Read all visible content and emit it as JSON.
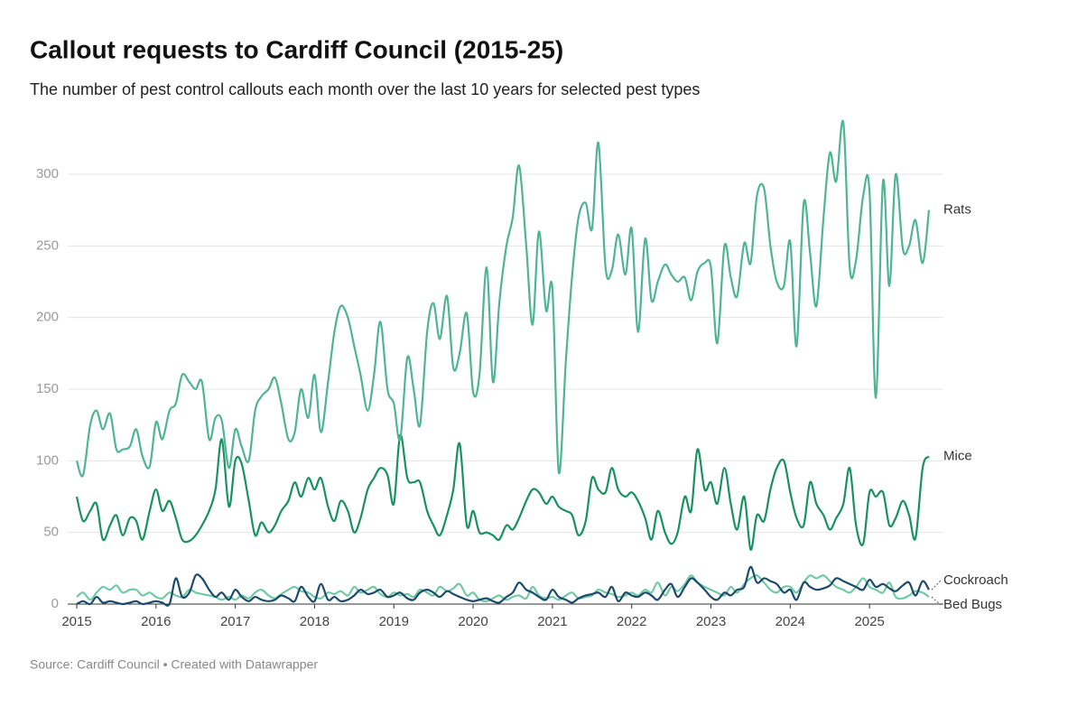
{
  "chart_data": {
    "type": "line",
    "title": "Callout requests to Cardiff Council (2015-25)",
    "subtitle": "The number of pest control callouts each month over the last 10 years for selected pest types",
    "source": "Source: Cardiff Council • Created with Datawrapper",
    "xlim": [
      2015,
      2025.75
    ],
    "xticks": [
      2015,
      2016,
      2017,
      2018,
      2019,
      2020,
      2021,
      2022,
      2023,
      2024,
      2025
    ],
    "ylim": [
      0,
      300
    ],
    "yticks": [
      0,
      50,
      100,
      150,
      200,
      250,
      300
    ],
    "grid": true,
    "x": [
      2015,
      2015.08,
      2015.17,
      2015.25,
      2015.33,
      2015.42,
      2015.5,
      2015.58,
      2015.67,
      2015.75,
      2015.83,
      2015.92,
      2016,
      2016.08,
      2016.17,
      2016.25,
      2016.33,
      2016.42,
      2016.5,
      2016.58,
      2016.67,
      2016.75,
      2016.83,
      2016.92,
      2017,
      2017.08,
      2017.17,
      2017.25,
      2017.33,
      2017.42,
      2017.5,
      2017.58,
      2017.67,
      2017.75,
      2017.83,
      2017.92,
      2018,
      2018.08,
      2018.17,
      2018.25,
      2018.33,
      2018.42,
      2018.5,
      2018.58,
      2018.67,
      2018.75,
      2018.83,
      2018.92,
      2019,
      2019.08,
      2019.17,
      2019.25,
      2019.33,
      2019.42,
      2019.5,
      2019.58,
      2019.67,
      2019.75,
      2019.83,
      2019.92,
      2020,
      2020.08,
      2020.17,
      2020.25,
      2020.33,
      2020.42,
      2020.5,
      2020.58,
      2020.67,
      2020.75,
      2020.83,
      2020.92,
      2021,
      2021.08,
      2021.17,
      2021.25,
      2021.33,
      2021.42,
      2021.5,
      2021.58,
      2021.67,
      2021.75,
      2021.83,
      2021.92,
      2022,
      2022.08,
      2022.17,
      2022.25,
      2022.33,
      2022.42,
      2022.5,
      2022.58,
      2022.67,
      2022.75,
      2022.83,
      2022.92,
      2023,
      2023.08,
      2023.17,
      2023.25,
      2023.33,
      2023.42,
      2023.5,
      2023.58,
      2023.67,
      2023.75,
      2023.83,
      2023.92,
      2024,
      2024.08,
      2024.17,
      2024.25,
      2024.33,
      2024.42,
      2024.5,
      2024.58,
      2024.67,
      2024.75,
      2024.83,
      2024.92,
      2025,
      2025.08,
      2025.17,
      2025.25,
      2025.33,
      2025.42,
      2025.5,
      2025.58,
      2025.67,
      2025.75
    ],
    "series": [
      {
        "name": "Rats",
        "color": "#4db593",
        "values": [
          100,
          90,
          125,
          135,
          122,
          133,
          108,
          108,
          110,
          122,
          103,
          96,
          127,
          115,
          135,
          140,
          160,
          155,
          150,
          155,
          115,
          130,
          128,
          95,
          122,
          110,
          100,
          135,
          145,
          150,
          158,
          140,
          115,
          120,
          150,
          130,
          160,
          120,
          155,
          190,
          208,
          200,
          180,
          160,
          135,
          160,
          197,
          150,
          140,
          115,
          172,
          150,
          125,
          190,
          210,
          185,
          215,
          165,
          175,
          203,
          148,
          160,
          235,
          155,
          210,
          250,
          270,
          306,
          250,
          195,
          260,
          205,
          220,
          92,
          170,
          230,
          270,
          280,
          262,
          322,
          235,
          233,
          258,
          230,
          262,
          190,
          255,
          212,
          225,
          237,
          230,
          225,
          228,
          212,
          232,
          238,
          235,
          182,
          250,
          228,
          215,
          252,
          238,
          285,
          290,
          250,
          225,
          222,
          253,
          180,
          280,
          245,
          208,
          270,
          315,
          295,
          336,
          235,
          240,
          285,
          288,
          144,
          295,
          222,
          300,
          248,
          250,
          268,
          238,
          275
        ]
      },
      {
        "name": "Mice",
        "color": "#17925f",
        "values": [
          75,
          58,
          65,
          70,
          45,
          55,
          62,
          48,
          60,
          58,
          45,
          65,
          80,
          65,
          72,
          60,
          45,
          44,
          48,
          55,
          65,
          80,
          115,
          68,
          100,
          98,
          72,
          48,
          57,
          50,
          55,
          65,
          72,
          85,
          75,
          88,
          80,
          88,
          68,
          58,
          72,
          65,
          50,
          60,
          80,
          88,
          95,
          90,
          70,
          118,
          88,
          85,
          85,
          65,
          55,
          48,
          62,
          80,
          112,
          55,
          65,
          50,
          50,
          48,
          45,
          55,
          52,
          60,
          72,
          80,
          78,
          70,
          75,
          68,
          65,
          62,
          48,
          58,
          88,
          80,
          78,
          95,
          80,
          75,
          78,
          72,
          60,
          45,
          65,
          50,
          42,
          50,
          75,
          65,
          108,
          80,
          85,
          70,
          95,
          70,
          52,
          75,
          38,
          62,
          58,
          80,
          95,
          100,
          78,
          60,
          55,
          85,
          70,
          62,
          52,
          60,
          70,
          95,
          55,
          42,
          78,
          75,
          78,
          55,
          60,
          72,
          62,
          46,
          95,
          103
        ]
      },
      {
        "name": "Cockroach",
        "color": "#1c4a6b",
        "values": [
          0,
          2,
          0,
          5,
          1,
          2,
          1,
          0,
          1,
          2,
          0,
          1,
          2,
          1,
          0,
          18,
          5,
          8,
          20,
          18,
          10,
          5,
          8,
          3,
          10,
          5,
          2,
          5,
          3,
          2,
          3,
          6,
          4,
          2,
          12,
          5,
          2,
          14,
          3,
          5,
          2,
          3,
          6,
          10,
          7,
          8,
          10,
          5,
          6,
          8,
          4,
          3,
          8,
          10,
          8,
          5,
          9,
          7,
          5,
          3,
          2,
          3,
          4,
          2,
          1,
          5,
          8,
          15,
          10,
          8,
          5,
          3,
          10,
          5,
          3,
          1,
          4,
          6,
          7,
          8,
          5,
          12,
          2,
          8,
          6,
          5,
          8,
          6,
          3,
          10,
          14,
          5,
          12,
          18,
          15,
          10,
          5,
          3,
          8,
          6,
          10,
          12,
          26,
          15,
          18,
          16,
          14,
          8,
          10,
          3,
          15,
          12,
          10,
          11,
          13,
          18,
          16,
          14,
          12,
          10,
          17,
          12,
          14,
          11,
          9,
          13,
          15,
          6,
          16,
          10
        ]
      },
      {
        "name": "Bed Bugs",
        "color": "#6fcaa6",
        "values": [
          5,
          8,
          3,
          8,
          12,
          10,
          13,
          8,
          10,
          10,
          6,
          8,
          5,
          4,
          8,
          6,
          5,
          10,
          8,
          7,
          6,
          5,
          3,
          5,
          3,
          6,
          4,
          8,
          10,
          6,
          4,
          7,
          10,
          12,
          9,
          8,
          5,
          4,
          8,
          7,
          9,
          6,
          12,
          8,
          10,
          12,
          7,
          5,
          8,
          6,
          7,
          5,
          10,
          8,
          6,
          12,
          9,
          11,
          14,
          6,
          8,
          3,
          2,
          4,
          6,
          3,
          5,
          6,
          4,
          12,
          6,
          4,
          5,
          3,
          6,
          8,
          4,
          5,
          6,
          10,
          8,
          7,
          5,
          6,
          8,
          6,
          10,
          8,
          15,
          6,
          12,
          9,
          14,
          20,
          15,
          12,
          10,
          8,
          6,
          12,
          8,
          14,
          18,
          20,
          15,
          10,
          8,
          12,
          12,
          8,
          15,
          20,
          18,
          20,
          16,
          12,
          10,
          8,
          12,
          18,
          12,
          10,
          8,
          15,
          5,
          4,
          6,
          9,
          8,
          5
        ]
      }
    ]
  }
}
